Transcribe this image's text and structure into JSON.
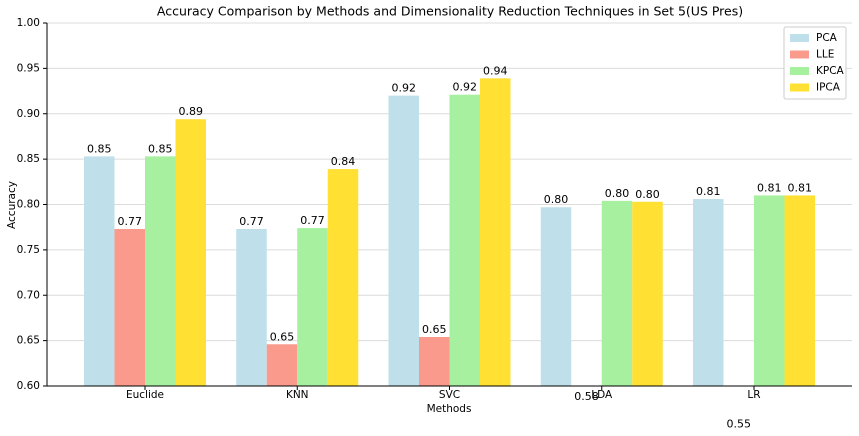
{
  "chart_data": {
    "type": "bar",
    "title": "Accuracy Comparison by Methods and Dimensionality Reduction Techniques in Set 5(US Pres)",
    "x_label": "Methods",
    "y_label": "Accuracy",
    "categories": [
      "Euclide",
      "KNN",
      "SVC",
      "LDA",
      "LR"
    ],
    "series": [
      {
        "name": "PCA",
        "color": "#bfe0ea",
        "values": [
          0.853,
          0.773,
          0.92,
          0.797,
          0.806
        ],
        "value_labels": [
          "0.85",
          "0.77",
          "0.92",
          "0.80",
          "0.81"
        ]
      },
      {
        "name": "LLE",
        "color": "#f99a8c",
        "values": [
          0.773,
          0.646,
          0.654,
          0.58,
          0.55
        ],
        "value_labels": [
          "0.77",
          "0.65",
          "0.65",
          "0.58",
          "0.55"
        ]
      },
      {
        "name": "KPCA",
        "color": "#a6f0a0",
        "values": [
          0.853,
          0.774,
          0.921,
          0.804,
          0.81
        ],
        "value_labels": [
          "0.85",
          "0.77",
          "0.92",
          "0.80",
          "0.81"
        ]
      },
      {
        "name": "IPCA",
        "color": "#ffe033",
        "values": [
          0.894,
          0.839,
          0.939,
          0.803,
          0.81
        ],
        "value_labels": [
          "0.89",
          "0.84",
          "0.94",
          "0.80",
          "0.81"
        ]
      }
    ],
    "ylim": [
      0.6,
      1.0
    ],
    "yticks": [
      {
        "value": 0.6,
        "label": "0.60"
      },
      0.65,
      {
        "value": 0.7,
        "label": "0.70"
      },
      0.75,
      {
        "value": 0.8,
        "label": "0.80"
      },
      0.85,
      {
        "value": 0.9,
        "label": "0.90"
      },
      0.95,
      {
        "value": 1.0,
        "label": "1.00"
      }
    ],
    "grid": true,
    "legend": "upper right"
  }
}
